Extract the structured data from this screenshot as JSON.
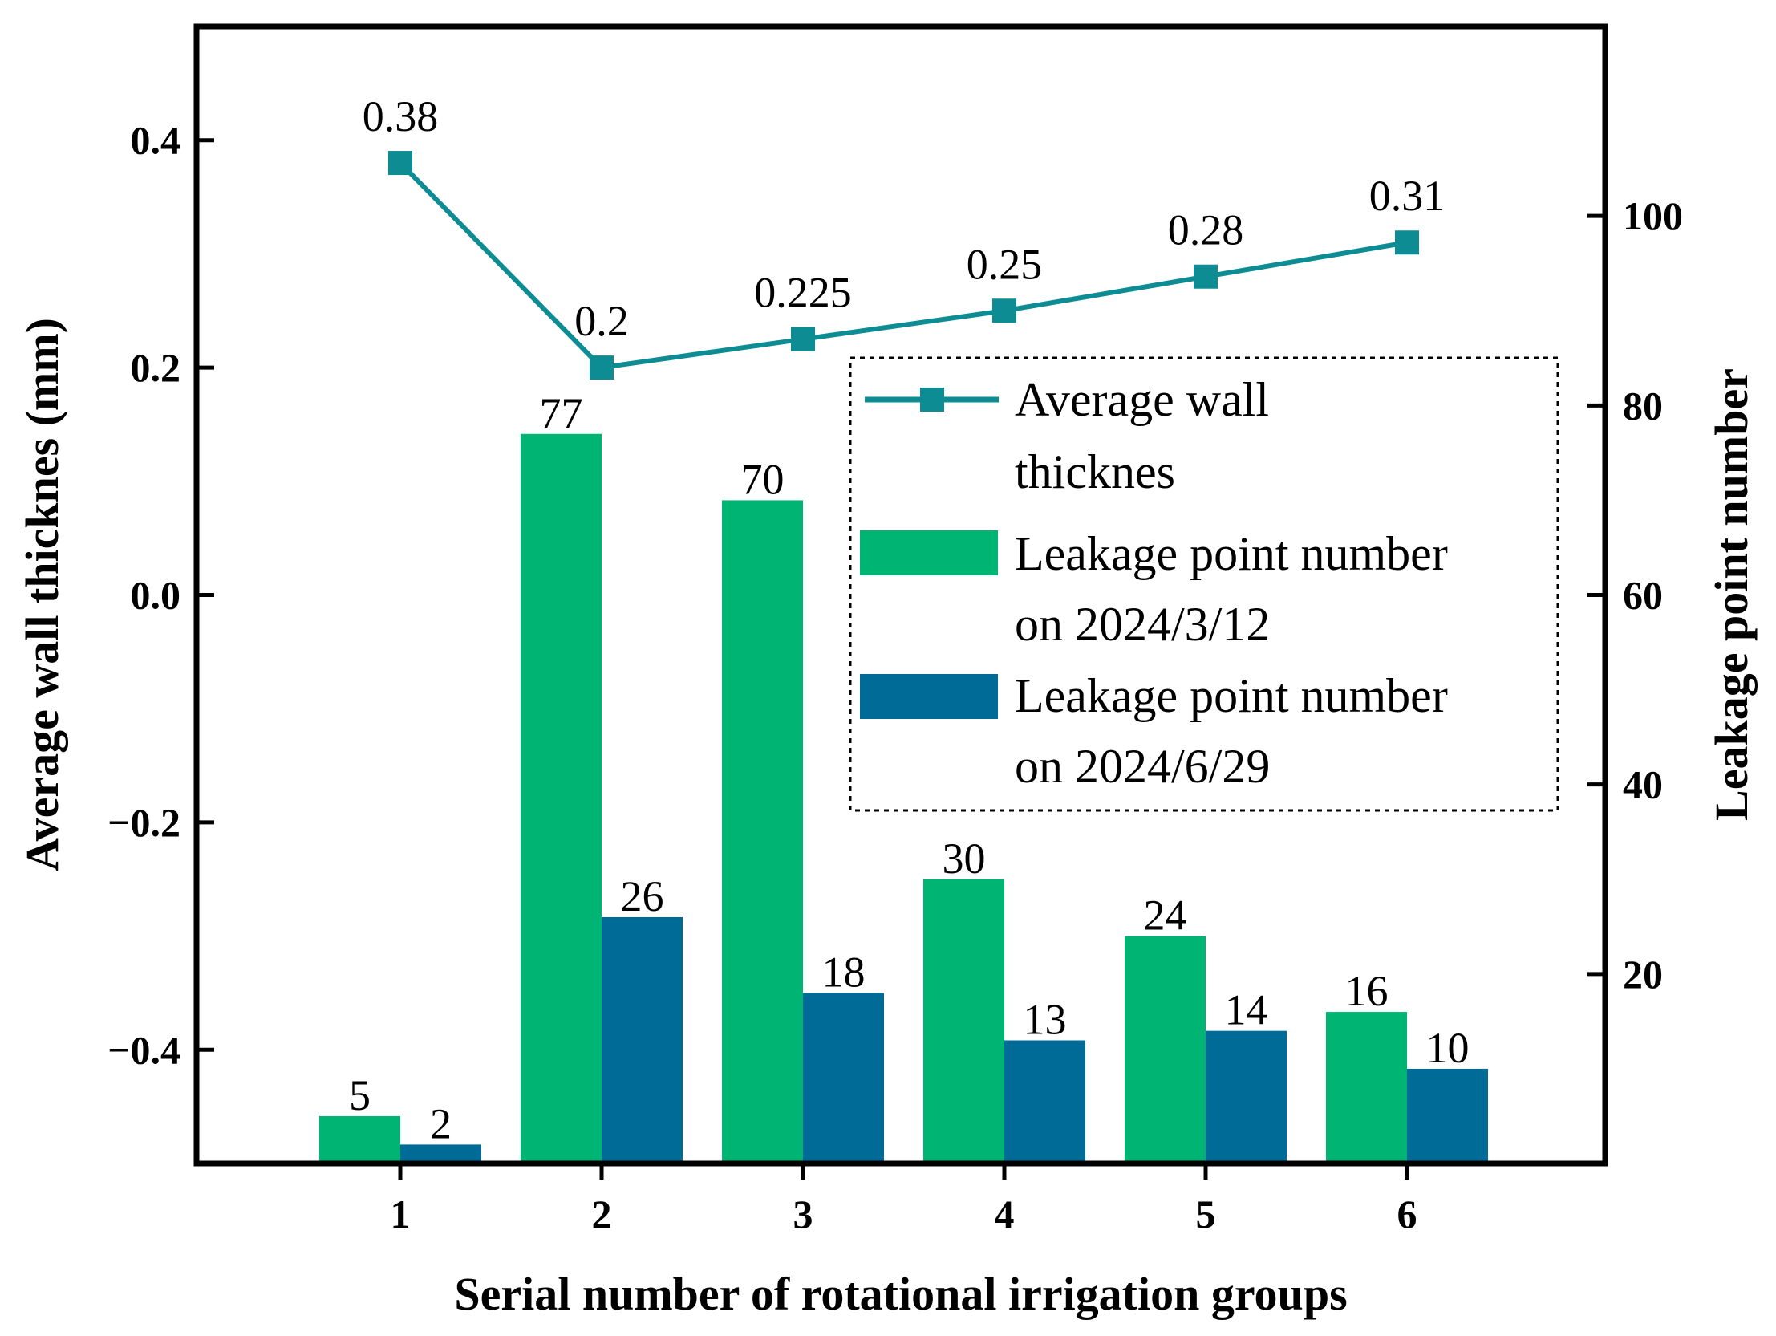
{
  "chart_data": {
    "type": "bar",
    "xlabel": "Serial number of rotational irrigation groups",
    "ylabel_left": "Average wall thicknes (mm)",
    "ylabel_right": "Leakage point number",
    "categories": [
      "1",
      "2",
      "3",
      "4",
      "5",
      "6"
    ],
    "ylim_left": [
      -0.5,
      0.5
    ],
    "yticks_left": [
      "0.4",
      "0.2",
      "0.0",
      "−0.2",
      "−0.4"
    ],
    "yticks_left_values": [
      0.4,
      0.2,
      0.0,
      -0.2,
      -0.4
    ],
    "ylim_right": [
      0,
      120
    ],
    "yticks_right": [
      "100",
      "80",
      "60",
      "40",
      "20"
    ],
    "yticks_right_values": [
      100,
      80,
      60,
      40,
      20
    ],
    "grid": false,
    "legend_position": "right",
    "bar_series": [
      {
        "name": "Leakage point number on 2024/3/12",
        "legend_lines": [
          "Leakage point number",
          "on 2024/3/12"
        ],
        "color": "#00b574",
        "values": [
          5,
          77,
          70,
          30,
          24,
          16
        ],
        "labels": [
          "5",
          "77",
          "70",
          "30",
          "24",
          "16"
        ]
      },
      {
        "name": "Leakage point number on 2024/6/29",
        "legend_lines": [
          "Leakage point number",
          "on 2024/6/29"
        ],
        "color": "#006b96",
        "values": [
          2,
          26,
          18,
          13,
          14,
          10
        ],
        "labels": [
          "2",
          "26",
          "18",
          "13",
          "14",
          "10"
        ]
      }
    ],
    "line_series": {
      "name": "Average wall thicknes",
      "legend_lines": [
        "Average wall",
        "thicknes"
      ],
      "color": "#0d8d93",
      "marker": "square",
      "axis": "left",
      "values": [
        0.38,
        0.2,
        0.225,
        0.25,
        0.28,
        0.31
      ],
      "labels": [
        "0.38",
        "0.2",
        "0.225",
        "0.25",
        "0.28",
        "0.31"
      ]
    }
  }
}
